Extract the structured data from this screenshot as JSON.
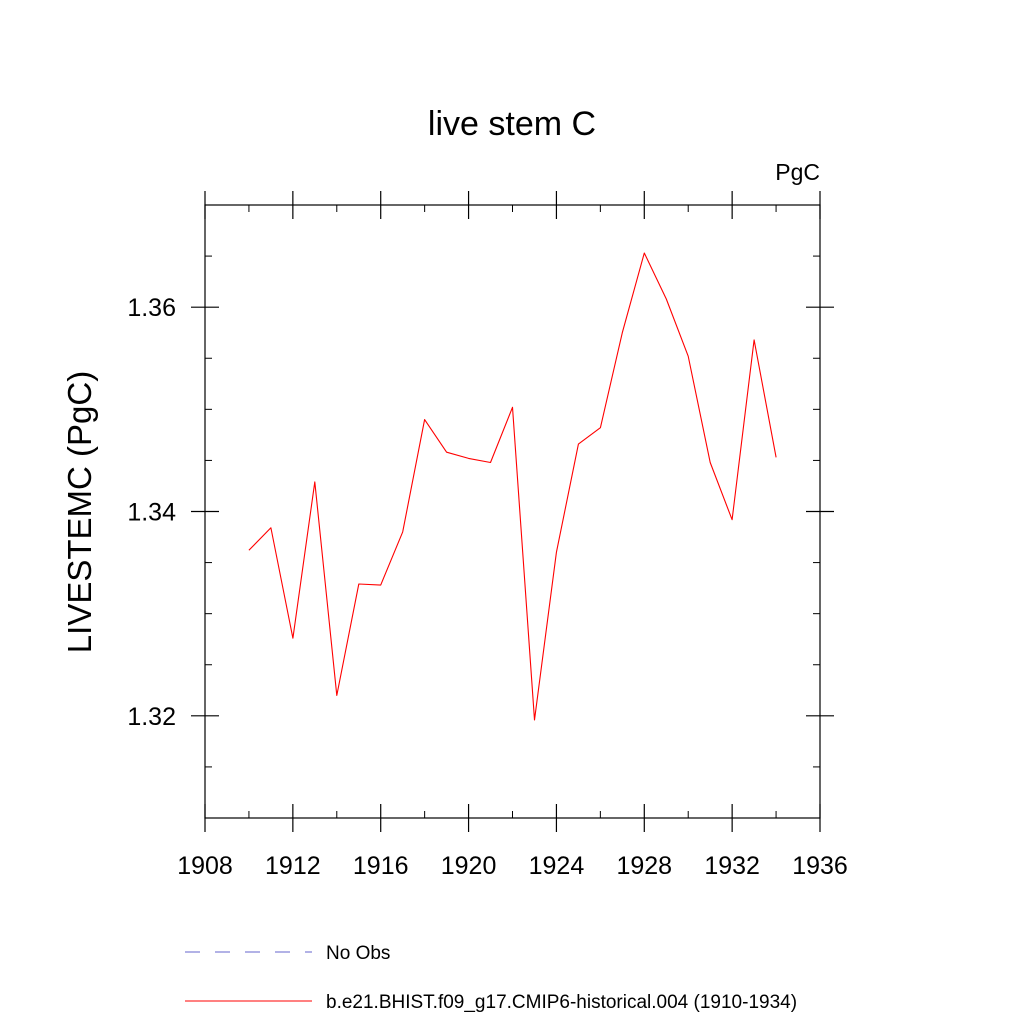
{
  "chart_data": {
    "type": "line",
    "title": "live stem C",
    "units_label": "PgC",
    "ylabel": "LIVESTEMC  (PgC)",
    "xlabel": "",
    "xlim": [
      1908,
      1936
    ],
    "ylim": [
      1.31,
      1.37
    ],
    "x_ticks": [
      1908,
      1912,
      1916,
      1920,
      1924,
      1928,
      1932,
      1936
    ],
    "x_tick_labels": [
      "1908",
      "1912",
      "1916",
      "1920",
      "1924",
      "1928",
      "1932",
      "1936"
    ],
    "x_minor_step": 2,
    "y_ticks": [
      1.32,
      1.34,
      1.36
    ],
    "y_tick_labels": [
      "1.32",
      "1.34",
      "1.36"
    ],
    "y_minor_step": 0.005,
    "grid": false,
    "legend_position": "bottom",
    "series": [
      {
        "name": "b.e21.BHIST.f09_g17.CMIP6-historical.004 (1910-1934)",
        "color": "#ff0000",
        "style": "solid",
        "x": [
          1910,
          1911,
          1912,
          1913,
          1914,
          1915,
          1916,
          1917,
          1918,
          1919,
          1920,
          1921,
          1922,
          1923,
          1924,
          1925,
          1926,
          1927,
          1928,
          1929,
          1930,
          1931,
          1932,
          1933,
          1934
        ],
        "y": [
          1.3362,
          1.3384,
          1.3276,
          1.3429,
          1.322,
          1.3329,
          1.3328,
          1.338,
          1.349,
          1.3458,
          1.3452,
          1.3448,
          1.3502,
          1.3196,
          1.336,
          1.3466,
          1.3482,
          1.3575,
          1.3653,
          1.3608,
          1.3552,
          1.3448,
          1.3392,
          1.3568,
          1.3453
        ]
      }
    ],
    "legend": [
      {
        "label": "No Obs",
        "color": "#6666cc",
        "style": "dashed"
      },
      {
        "label": "b.e21.BHIST.f09_g17.CMIP6-historical.004 (1910-1934)",
        "color": "#ff0000",
        "style": "solid"
      }
    ]
  }
}
